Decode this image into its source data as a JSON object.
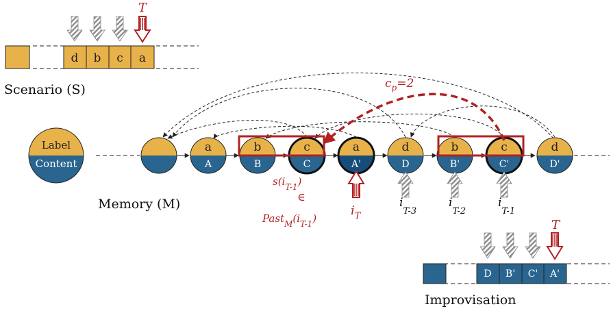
{
  "scenario": {
    "title": "Scenario (S)",
    "cells": [
      "d",
      "b",
      "c",
      "a"
    ],
    "current_marker": "T"
  },
  "memory": {
    "title": "Memory (M)",
    "legend": {
      "label": "Label",
      "content": "Content"
    },
    "nodes": [
      {
        "label": "",
        "content": ""
      },
      {
        "label": "a",
        "content": "A"
      },
      {
        "label": "b",
        "content": "B"
      },
      {
        "label": "c",
        "content": "C"
      },
      {
        "label": "a",
        "content": "A'"
      },
      {
        "label": "d",
        "content": "D"
      },
      {
        "label": "b",
        "content": "B'"
      },
      {
        "label": "c",
        "content": "C'"
      },
      {
        "label": "d",
        "content": "D'"
      }
    ],
    "cp_label_main": "c",
    "cp_label_sub": "p",
    "cp_label_value": "=2",
    "s_expr": {
      "main": "s(i",
      "sub": "T-1",
      "close": ")"
    },
    "in_symbol": "∈",
    "past_expr": {
      "main": "Past",
      "sub": "M",
      "arg": "(i",
      "argsub": "T-1",
      "close": ")"
    },
    "i_T": {
      "main": "i",
      "sub": "T"
    },
    "i_T3": {
      "main": "i",
      "sub": "T-3"
    },
    "i_T2": {
      "main": "i",
      "sub": "T-2"
    },
    "i_T1": {
      "main": "i",
      "sub": "T-1"
    }
  },
  "improvisation": {
    "title": "Improvisation",
    "cells": [
      "D",
      "B'",
      "C'",
      "A'"
    ],
    "current_marker": "T"
  },
  "colors": {
    "gold": "#E8B24A",
    "blue": "#2A6590",
    "dark_blue": "#174D7A",
    "red": "#B22222",
    "gray": "#9a9a9a"
  }
}
